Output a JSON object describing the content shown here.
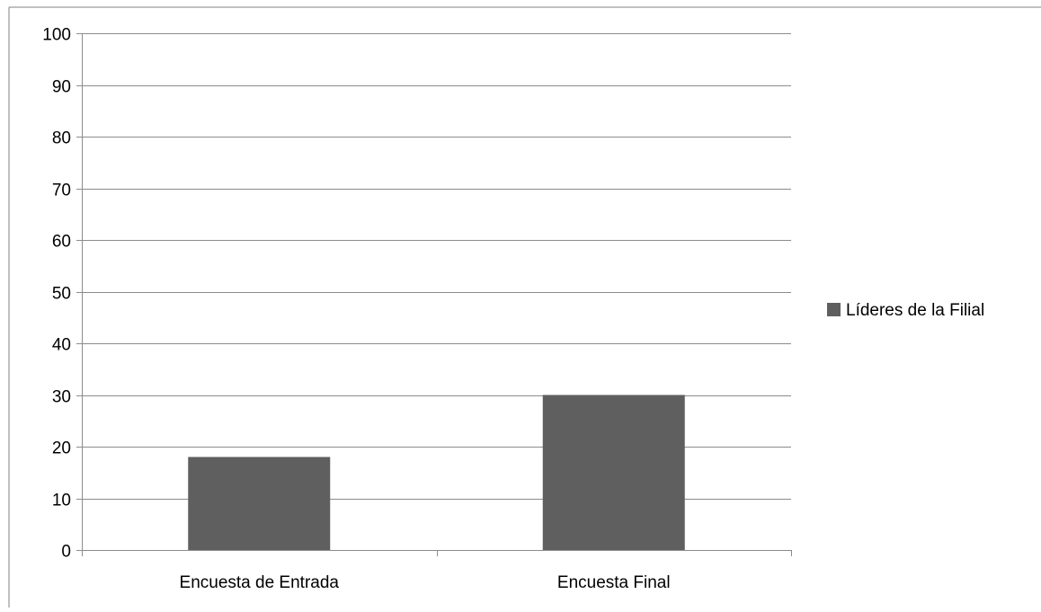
{
  "chart_data": {
    "type": "bar",
    "categories": [
      "Encuesta de Entrada",
      "Encuesta Final"
    ],
    "series": [
      {
        "name": "Líderes de la Filial",
        "values": [
          18,
          30
        ]
      }
    ],
    "ylim": [
      0,
      100
    ],
    "yticks": [
      0,
      10,
      20,
      30,
      40,
      50,
      60,
      70,
      80,
      90,
      100
    ],
    "grid": true,
    "legend": "right",
    "colors": {
      "bar": "#5f5f5f",
      "grid": "#8c8c8c",
      "axis": "#8c8c8c",
      "text": "#000000",
      "frame": "#808080"
    }
  }
}
